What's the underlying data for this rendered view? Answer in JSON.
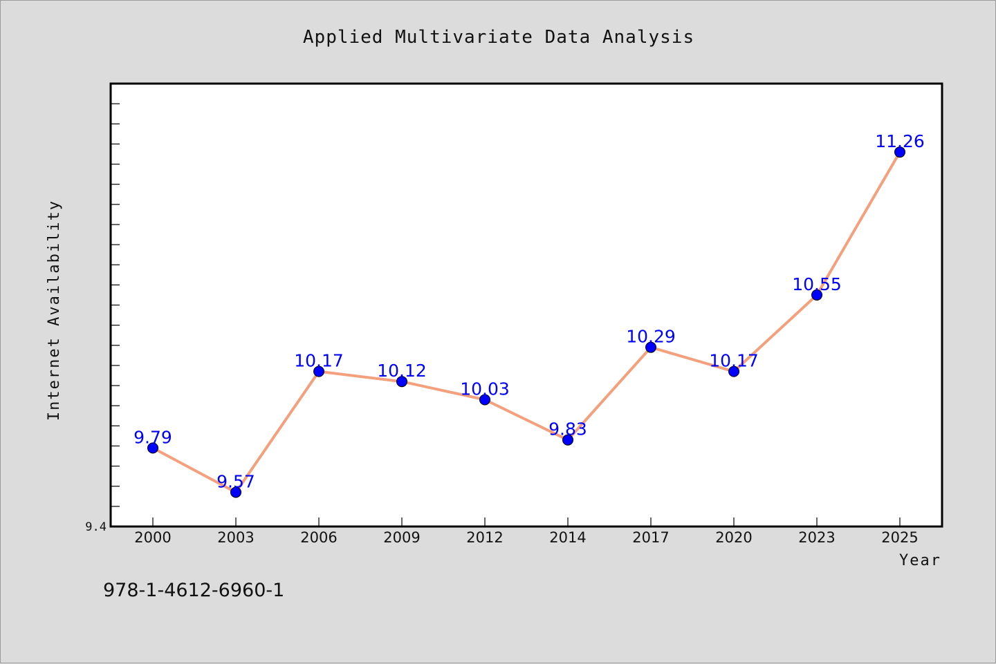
{
  "colors": {
    "background": "#dcdcdc",
    "plot_background": "#ffffff",
    "line": "#f4a07c",
    "marker": "#0000ff",
    "label": "#0000ff"
  },
  "footer": {
    "isbn": "978-1-4612-6960-1"
  },
  "chart_data": {
    "type": "line",
    "title": "Applied Multivariate Data Analysis",
    "xlabel": "Year",
    "ylabel": "Internet Availability",
    "categories": [
      "2000",
      "2003",
      "2006",
      "2009",
      "2012",
      "2014",
      "2017",
      "2020",
      "2023",
      "2025"
    ],
    "series": [
      {
        "values": [
          9.79,
          9.57,
          10.17,
          10.12,
          10.03,
          9.83,
          10.29,
          10.17,
          10.55,
          11.26
        ],
        "labels": [
          "9.79",
          "9.57",
          "10.17",
          "10.12",
          "10.03",
          "9.83",
          "10.29",
          "10.17",
          "10.55",
          "11.26"
        ]
      }
    ],
    "ylim": [
      9.4,
      11.6
    ],
    "yticks_labeled": [
      "9.4"
    ],
    "ytick_step": 0.1,
    "grid": false,
    "legend": "none"
  }
}
